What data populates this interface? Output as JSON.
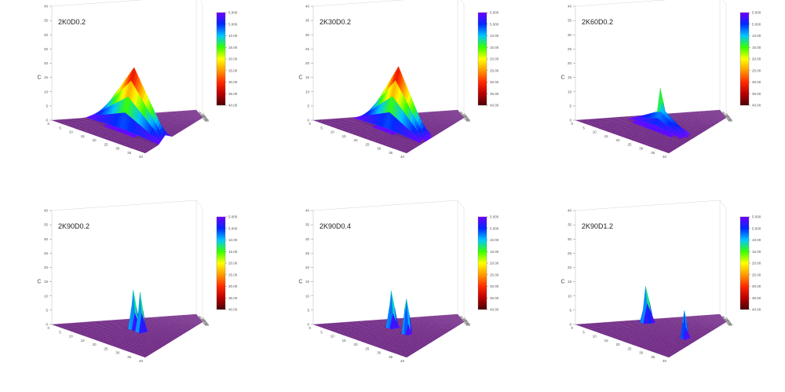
{
  "colors": {
    "floor": "#6b2580",
    "colormap": [
      "#4a0008",
      "#b80000",
      "#ff2a00",
      "#ff9a00",
      "#ffff00",
      "#38ff00",
      "#00c8ff",
      "#0028ff",
      "#7000ff"
    ]
  },
  "chart_data": [
    {
      "type": "surface3d",
      "title": "2K0D0.2",
      "zlabel": "C",
      "zlim": [
        0,
        40
      ],
      "zticks": [
        "0",
        "5",
        "10",
        "15",
        "20",
        "25",
        "30",
        "35",
        "40"
      ],
      "colorbar_ticks": [
        "5.000",
        "5.000",
        "10.00",
        "15.00",
        "20.00",
        "25.00",
        "30.00",
        "35.00",
        "40.00"
      ],
      "grid": true,
      "peaks": [
        {
          "x": 0.35,
          "y": 0.5,
          "height": 22,
          "sx": 0.12,
          "sy": 0.55,
          "shape": "ridge"
        }
      ]
    },
    {
      "type": "surface3d",
      "title": "2K30D0.2",
      "zlabel": "C",
      "zlim": [
        0,
        40
      ],
      "zticks": [
        "0",
        "5",
        "10",
        "15",
        "20",
        "25",
        "30",
        "35",
        "40"
      ],
      "colorbar_ticks": [
        "5.000",
        "5.000",
        "10.00",
        "15.00",
        "20.00",
        "25.00",
        "30.00",
        "35.00",
        "40.00"
      ],
      "grid": true,
      "peaks": [
        {
          "x": 0.38,
          "y": 0.5,
          "height": 22,
          "sx": 0.12,
          "sy": 0.5,
          "shape": "ridge"
        }
      ]
    },
    {
      "type": "surface3d",
      "title": "2K60D0.2",
      "zlabel": "C",
      "zlim": [
        0,
        40
      ],
      "zticks": [
        "0",
        "5",
        "10",
        "15",
        "20",
        "25",
        "30",
        "35",
        "40"
      ],
      "colorbar_ticks": [
        "5.000",
        "5.000",
        "10.00",
        "15.00",
        "20.00",
        "25.00",
        "30.00",
        "35.00",
        "40.00"
      ],
      "grid": true,
      "peaks": [
        {
          "x": 0.42,
          "y": 0.45,
          "height": 19,
          "sx": 0.04,
          "sy": 0.04,
          "shape": "spike"
        },
        {
          "x": 0.4,
          "y": 0.5,
          "height": 7,
          "sx": 0.1,
          "sy": 0.45,
          "shape": "ridge"
        }
      ]
    },
    {
      "type": "surface3d",
      "title": "2K90D0.2",
      "zlabel": "C",
      "zlim": [
        0,
        40
      ],
      "zticks": [
        "0",
        "5",
        "10",
        "15",
        "20",
        "25",
        "30",
        "35",
        "40"
      ],
      "colorbar_ticks": [
        "5.000",
        "5.000",
        "10.00",
        "15.00",
        "20.00",
        "25.00",
        "30.00",
        "35.00",
        "40.00"
      ],
      "grid": true,
      "peaks": [
        {
          "x": 0.42,
          "y": 0.38,
          "height": 18,
          "sx": 0.035,
          "sy": 0.05,
          "shape": "spike"
        },
        {
          "x": 0.42,
          "y": 0.5,
          "height": 18,
          "sx": 0.035,
          "sy": 0.05,
          "shape": "spike"
        }
      ]
    },
    {
      "type": "surface3d",
      "title": "2K90D0.4",
      "zlabel": "C",
      "zlim": [
        0,
        40
      ],
      "zticks": [
        "0",
        "5",
        "10",
        "15",
        "20",
        "25",
        "30",
        "35",
        "40"
      ],
      "colorbar_ticks": [
        "5.000",
        "5.000",
        "10.00",
        "15.00",
        "20.00",
        "25.00",
        "30.00",
        "35.00",
        "40.00"
      ],
      "grid": true,
      "peaks": [
        {
          "x": 0.42,
          "y": 0.32,
          "height": 17,
          "sx": 0.035,
          "sy": 0.05,
          "shape": "spike"
        },
        {
          "x": 0.42,
          "y": 0.58,
          "height": 17,
          "sx": 0.035,
          "sy": 0.05,
          "shape": "spike"
        }
      ]
    },
    {
      "type": "surface3d",
      "title": "2K90D1.2",
      "zlabel": "C",
      "zlim": [
        0,
        40
      ],
      "zticks": [
        "0",
        "5",
        "10",
        "15",
        "20",
        "25",
        "30",
        "35",
        "40"
      ],
      "colorbar_ticks": [
        "5.000",
        "5.000",
        "10.00",
        "15.00",
        "20.00",
        "25.00",
        "30.00",
        "35.00",
        "40.00"
      ],
      "grid": true,
      "peaks": [
        {
          "x": 0.45,
          "y": 0.12,
          "height": 17,
          "sx": 0.035,
          "sy": 0.05,
          "shape": "spike"
        },
        {
          "x": 0.45,
          "y": 0.82,
          "height": 13,
          "sx": 0.035,
          "sy": 0.05,
          "shape": "spike"
        }
      ]
    }
  ]
}
